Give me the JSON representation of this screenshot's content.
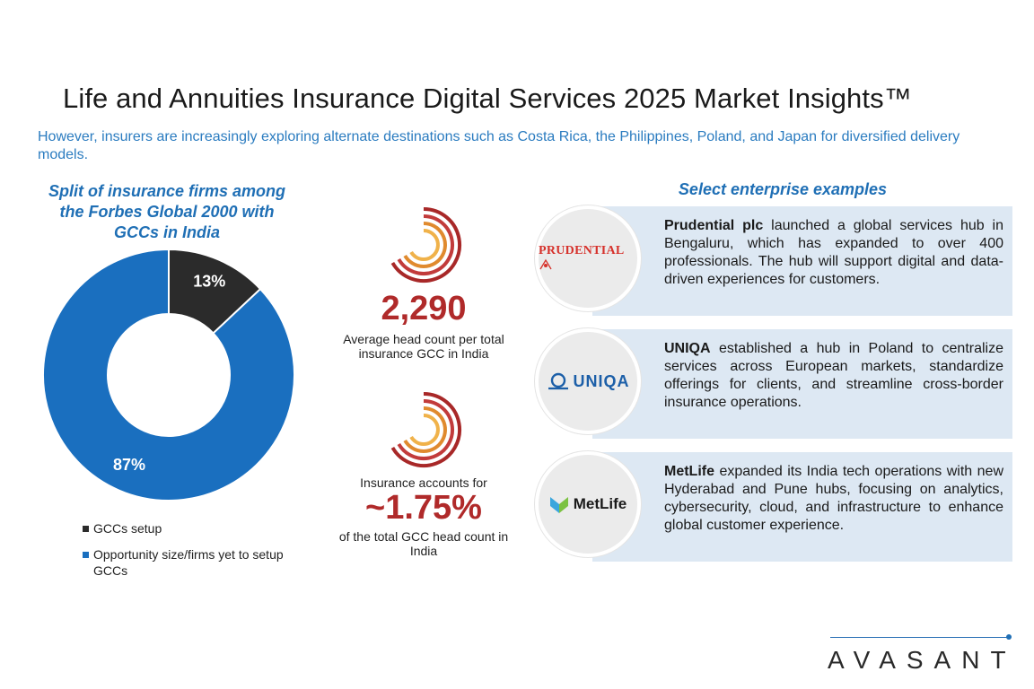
{
  "header": {
    "title": "Life and Annuities Insurance Digital Services 2025 Market Insights™",
    "subtitle": "However, insurers are increasingly exploring alternate destinations such as Costa Rica, the Philippines, Poland, and Japan for diversified delivery models."
  },
  "chart_data": {
    "type": "pie",
    "variant": "donut",
    "title": "Split of insurance firms among the Forbes Global 2000 with GCCs in India",
    "categories": [
      "GCCs setup",
      "Opportunity size/firms yet to setup GCCs"
    ],
    "values": [
      13,
      87
    ],
    "labels": [
      "13%",
      "87%"
    ],
    "colors": [
      "#2b2b2b",
      "#1a6fbf"
    ],
    "legend_position": "bottom"
  },
  "stats": [
    {
      "value": "2,290",
      "text_after": "Average head count per total insurance GCC in India"
    },
    {
      "text_before": "Insurance accounts for",
      "value": "~1.75%",
      "text_after": "of the total GCC head count in India"
    }
  ],
  "examples": {
    "header": "Select enterprise examples",
    "items": [
      {
        "company": "Prudential plc",
        "text": " launched a global services hub in Bengaluru, which has expanded to over 400 professionals. The hub will support digital and data-driven experiences for customers.",
        "logo_text": "PRUDENTIAL"
      },
      {
        "company": "UNIQA",
        "text": " established a hub in Poland to centralize services across European markets, standardize offerings for clients, and streamline cross-border insurance operations.",
        "logo_text": "UNIQA"
      },
      {
        "company": "MetLife",
        "text": " expanded its India tech operations with new Hyderabad and Pune hubs, focusing on analytics, cybersecurity, cloud, and infrastructure to enhance global customer experience.",
        "logo_text": "MetLife"
      }
    ]
  },
  "footer": {
    "brand": "AVASANT"
  },
  "colors": {
    "accent_blue": "#1f6fb5",
    "stat_red": "#b02a2a",
    "card_bg": "#dde8f3"
  }
}
